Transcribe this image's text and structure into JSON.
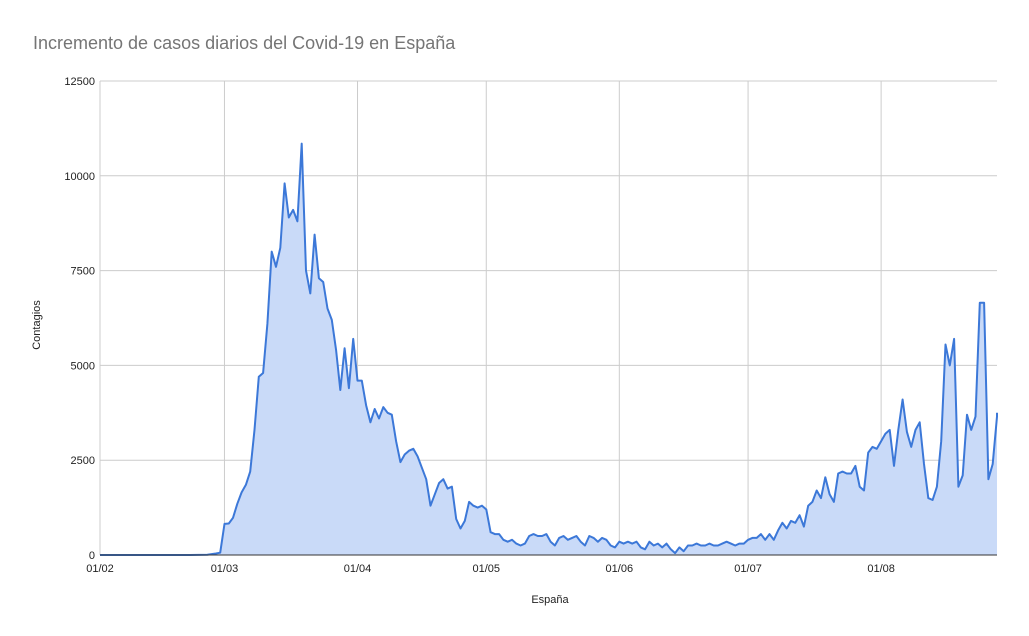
{
  "chart_data": {
    "type": "area",
    "title": "Incremento de casos diarios del Covid-19 en España",
    "xlabel": "España",
    "ylabel": "Contagios",
    "ylim": [
      0,
      12500
    ],
    "yticks": [
      "0",
      "2500",
      "5000",
      "7500",
      "10000",
      "12500"
    ],
    "ytick_values": [
      0,
      2500,
      5000,
      7500,
      10000,
      12500
    ],
    "xticks": [
      "01/02",
      "01/03",
      "01/04",
      "01/05",
      "01/06",
      "01/07",
      "01/08"
    ],
    "xtick_values": [
      "2020-02-01",
      "2020-03-01",
      "2020-04-01",
      "2020-05-01",
      "2020-06-01",
      "2020-07-01",
      "2020-08-01"
    ],
    "xlim": [
      "2020-02-01",
      "2020-08-28"
    ],
    "grid": true,
    "colors": {
      "line": "#3c78d8",
      "fill": "#c9daf8"
    },
    "series": [
      {
        "name": "Contagios",
        "points": [
          [
            "2020-02-01",
            0
          ],
          [
            "2020-02-08",
            0
          ],
          [
            "2020-02-15",
            0
          ],
          [
            "2020-02-22",
            0
          ],
          [
            "2020-02-26",
            5
          ],
          [
            "2020-02-28",
            40
          ],
          [
            "2020-02-29",
            60
          ],
          [
            "2020-03-01",
            820
          ],
          [
            "2020-03-02",
            830
          ],
          [
            "2020-03-03",
            980
          ],
          [
            "2020-03-04",
            1350
          ],
          [
            "2020-03-05",
            1650
          ],
          [
            "2020-03-06",
            1850
          ],
          [
            "2020-03-07",
            2200
          ],
          [
            "2020-03-08",
            3300
          ],
          [
            "2020-03-09",
            4700
          ],
          [
            "2020-03-10",
            4800
          ],
          [
            "2020-03-11",
            6100
          ],
          [
            "2020-03-12",
            8000
          ],
          [
            "2020-03-13",
            7600
          ],
          [
            "2020-03-14",
            8100
          ],
          [
            "2020-03-15",
            9800
          ],
          [
            "2020-03-16",
            8900
          ],
          [
            "2020-03-17",
            9100
          ],
          [
            "2020-03-18",
            8800
          ],
          [
            "2020-03-19",
            10850
          ],
          [
            "2020-03-20",
            7500
          ],
          [
            "2020-03-21",
            6900
          ],
          [
            "2020-03-22",
            8450
          ],
          [
            "2020-03-23",
            7300
          ],
          [
            "2020-03-24",
            7200
          ],
          [
            "2020-03-25",
            6500
          ],
          [
            "2020-03-26",
            6200
          ],
          [
            "2020-03-27",
            5400
          ],
          [
            "2020-03-28",
            4350
          ],
          [
            "2020-03-29",
            5450
          ],
          [
            "2020-03-30",
            4400
          ],
          [
            "2020-03-31",
            5700
          ],
          [
            "2020-04-01",
            4600
          ],
          [
            "2020-04-02",
            4600
          ],
          [
            "2020-04-03",
            3950
          ],
          [
            "2020-04-04",
            3500
          ],
          [
            "2020-04-05",
            3850
          ],
          [
            "2020-04-06",
            3600
          ],
          [
            "2020-04-07",
            3900
          ],
          [
            "2020-04-08",
            3750
          ],
          [
            "2020-04-09",
            3700
          ],
          [
            "2020-04-10",
            3000
          ],
          [
            "2020-04-11",
            2450
          ],
          [
            "2020-04-12",
            2650
          ],
          [
            "2020-04-13",
            2750
          ],
          [
            "2020-04-14",
            2800
          ],
          [
            "2020-04-15",
            2600
          ],
          [
            "2020-04-16",
            2300
          ],
          [
            "2020-04-17",
            2000
          ],
          [
            "2020-04-18",
            1300
          ],
          [
            "2020-04-19",
            1600
          ],
          [
            "2020-04-20",
            1900
          ],
          [
            "2020-04-21",
            2000
          ],
          [
            "2020-04-22",
            1750
          ],
          [
            "2020-04-23",
            1800
          ],
          [
            "2020-04-24",
            950
          ],
          [
            "2020-04-25",
            700
          ],
          [
            "2020-04-26",
            900
          ],
          [
            "2020-04-27",
            1400
          ],
          [
            "2020-04-28",
            1300
          ],
          [
            "2020-04-29",
            1250
          ],
          [
            "2020-04-30",
            1300
          ],
          [
            "2020-05-01",
            1200
          ],
          [
            "2020-05-02",
            600
          ],
          [
            "2020-05-03",
            550
          ],
          [
            "2020-05-04",
            550
          ],
          [
            "2020-05-05",
            400
          ],
          [
            "2020-05-06",
            350
          ],
          [
            "2020-05-07",
            400
          ],
          [
            "2020-05-08",
            300
          ],
          [
            "2020-05-09",
            250
          ],
          [
            "2020-05-10",
            300
          ],
          [
            "2020-05-11",
            500
          ],
          [
            "2020-05-12",
            550
          ],
          [
            "2020-05-13",
            500
          ],
          [
            "2020-05-14",
            500
          ],
          [
            "2020-05-15",
            550
          ],
          [
            "2020-05-16",
            350
          ],
          [
            "2020-05-17",
            250
          ],
          [
            "2020-05-18",
            450
          ],
          [
            "2020-05-19",
            500
          ],
          [
            "2020-05-20",
            400
          ],
          [
            "2020-05-21",
            450
          ],
          [
            "2020-05-22",
            500
          ],
          [
            "2020-05-23",
            350
          ],
          [
            "2020-05-24",
            250
          ],
          [
            "2020-05-25",
            500
          ],
          [
            "2020-05-26",
            450
          ],
          [
            "2020-05-27",
            350
          ],
          [
            "2020-05-28",
            450
          ],
          [
            "2020-05-29",
            400
          ],
          [
            "2020-05-30",
            250
          ],
          [
            "2020-05-31",
            200
          ],
          [
            "2020-06-01",
            350
          ],
          [
            "2020-06-02",
            300
          ],
          [
            "2020-06-03",
            350
          ],
          [
            "2020-06-04",
            300
          ],
          [
            "2020-06-05",
            350
          ],
          [
            "2020-06-06",
            200
          ],
          [
            "2020-06-07",
            150
          ],
          [
            "2020-06-08",
            350
          ],
          [
            "2020-06-09",
            250
          ],
          [
            "2020-06-10",
            300
          ],
          [
            "2020-06-11",
            200
          ],
          [
            "2020-06-12",
            300
          ],
          [
            "2020-06-13",
            150
          ],
          [
            "2020-06-14",
            50
          ],
          [
            "2020-06-15",
            200
          ],
          [
            "2020-06-16",
            100
          ],
          [
            "2020-06-17",
            250
          ],
          [
            "2020-06-18",
            250
          ],
          [
            "2020-06-19",
            300
          ],
          [
            "2020-06-20",
            250
          ],
          [
            "2020-06-21",
            250
          ],
          [
            "2020-06-22",
            300
          ],
          [
            "2020-06-23",
            250
          ],
          [
            "2020-06-24",
            250
          ],
          [
            "2020-06-25",
            300
          ],
          [
            "2020-06-26",
            350
          ],
          [
            "2020-06-27",
            300
          ],
          [
            "2020-06-28",
            250
          ],
          [
            "2020-06-29",
            300
          ],
          [
            "2020-06-30",
            300
          ],
          [
            "2020-07-01",
            400
          ],
          [
            "2020-07-02",
            450
          ],
          [
            "2020-07-03",
            450
          ],
          [
            "2020-07-04",
            550
          ],
          [
            "2020-07-05",
            400
          ],
          [
            "2020-07-06",
            550
          ],
          [
            "2020-07-07",
            400
          ],
          [
            "2020-07-08",
            650
          ],
          [
            "2020-07-09",
            850
          ],
          [
            "2020-07-10",
            700
          ],
          [
            "2020-07-11",
            900
          ],
          [
            "2020-07-12",
            850
          ],
          [
            "2020-07-13",
            1050
          ],
          [
            "2020-07-14",
            750
          ],
          [
            "2020-07-15",
            1300
          ],
          [
            "2020-07-16",
            1400
          ],
          [
            "2020-07-17",
            1700
          ],
          [
            "2020-07-18",
            1500
          ],
          [
            "2020-07-19",
            2050
          ],
          [
            "2020-07-20",
            1600
          ],
          [
            "2020-07-21",
            1400
          ],
          [
            "2020-07-22",
            2150
          ],
          [
            "2020-07-23",
            2200
          ],
          [
            "2020-07-24",
            2150
          ],
          [
            "2020-07-25",
            2150
          ],
          [
            "2020-07-26",
            2350
          ],
          [
            "2020-07-27",
            1800
          ],
          [
            "2020-07-28",
            1700
          ],
          [
            "2020-07-29",
            2700
          ],
          [
            "2020-07-30",
            2850
          ],
          [
            "2020-07-31",
            2800
          ],
          [
            "2020-08-01",
            3000
          ],
          [
            "2020-08-02",
            3200
          ],
          [
            "2020-08-03",
            3300
          ],
          [
            "2020-08-04",
            2350
          ],
          [
            "2020-08-05",
            3300
          ],
          [
            "2020-08-06",
            4100
          ],
          [
            "2020-08-07",
            3250
          ],
          [
            "2020-08-08",
            2850
          ],
          [
            "2020-08-09",
            3300
          ],
          [
            "2020-08-10",
            3500
          ],
          [
            "2020-08-11",
            2400
          ],
          [
            "2020-08-12",
            1500
          ],
          [
            "2020-08-13",
            1450
          ],
          [
            "2020-08-14",
            1800
          ],
          [
            "2020-08-15",
            3000
          ],
          [
            "2020-08-16",
            5550
          ],
          [
            "2020-08-17",
            5000
          ],
          [
            "2020-08-18",
            5700
          ],
          [
            "2020-08-19",
            1800
          ],
          [
            "2020-08-20",
            2100
          ],
          [
            "2020-08-21",
            3700
          ],
          [
            "2020-08-22",
            3300
          ],
          [
            "2020-08-23",
            3650
          ],
          [
            "2020-08-24",
            6650
          ],
          [
            "2020-08-25",
            6650
          ],
          [
            "2020-08-26",
            2000
          ],
          [
            "2020-08-27",
            2400
          ],
          [
            "2020-08-28",
            3650
          ],
          [
            "2020-08-29",
            3750
          ]
        ]
      }
    ]
  }
}
